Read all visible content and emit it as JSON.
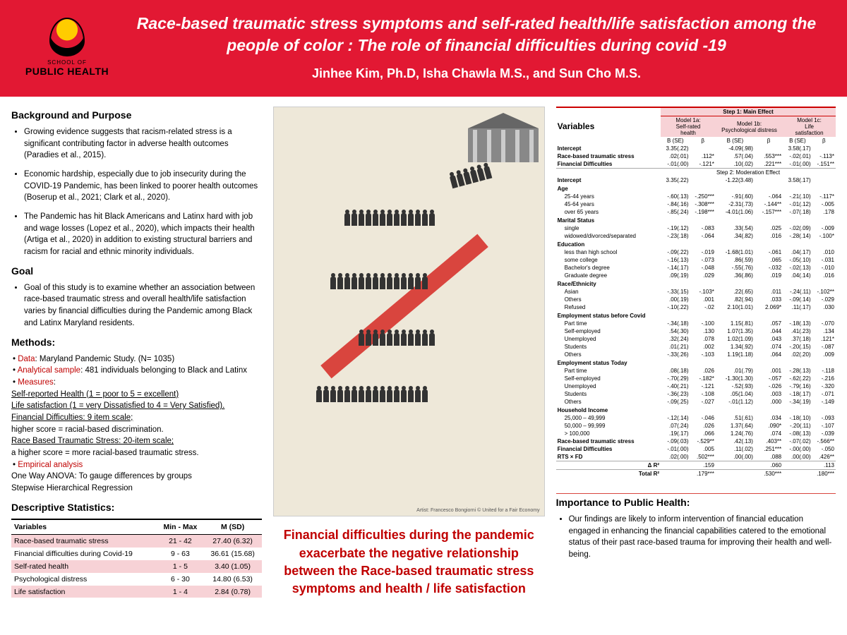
{
  "header": {
    "logo_top": "SCHOOL OF",
    "logo_bottom": "PUBLIC HEALTH",
    "title": "Race-based traumatic stress symptoms and self-rated health/life satisfaction among the people of color : The role of financial difficulties during covid -19",
    "authors": "Jinhee Kim, Ph.D, Isha Chawla M.S., and  Sun Cho M.S."
  },
  "left": {
    "bg_title": "Background and Purpose",
    "bg_items": [
      "Growing evidence suggests that racism-related stress is a significant contributing factor in adverse health outcomes (Paradies et al., 2015).",
      "Economic hardship, especially due to job insecurity during the COVID-19 Pandemic, has been linked to poorer health outcomes (Boserup et al., 2021; Clark et al., 2020).",
      "The Pandemic has hit Black Americans and Latinx hard with job and wage losses (Lopez et al., 2020), which impacts their health (Artiga et al., 2020) in addition to existing structural barriers and racism for racial and ethnic minority individuals."
    ],
    "goal_title": "Goal",
    "goal_item": "Goal of this study is to examine whether an  association between race-based traumatic stress and overall health/life satisfaction varies by financial difficulties during the Pandemic among Black and Latinx Maryland residents.",
    "methods_title": "Methods:",
    "m_data_label": "Data",
    "m_data": ": Maryland Pandemic Study. (N= 1035)",
    "m_sample_label": "Analytical sample",
    "m_sample": ": 481 individuals belonging to  Black and Latinx",
    "m_measures_label": "Measures",
    "m_1": "Self-reported Health (1 = poor to 5 = excellent)",
    "m_2": "Life satisfaction (1 = very Dissatisfied to 4 = Very Satisfied).",
    "m_3": "Financial Difficulties: 9 item scale;",
    "m_3b": "higher score = racial-based discrimination.",
    "m_4": " Race Based Traumatic Stress: 20-item scale;",
    "m_4b": "a higher score = more racial-based traumatic stress.",
    "m_emp_label": "Empirical analysis",
    "m_emp1": "One Way ANOVA: To gauge differences by groups",
    "m_emp2": "Stepwise Hierarchical Regression",
    "desc_title": "Descriptive Statistics:",
    "desc_cols": [
      "Variables",
      "Min - Max",
      "M (SD)"
    ],
    "desc_rows": [
      {
        "shade": true,
        "c": [
          "Race-based traumatic stress",
          "21 - 42",
          "27.40 (6.32)"
        ]
      },
      {
        "shade": false,
        "c": [
          "Financial difficulties during Covid-19",
          "9 - 63",
          "36.61 (15.68)"
        ]
      },
      {
        "shade": true,
        "c": [
          "Self-rated health",
          "1 - 5",
          "3.40 (1.05)"
        ]
      },
      {
        "shade": false,
        "c": [
          "Psychological distress",
          "6 - 30",
          "14.80 (6.53)"
        ]
      },
      {
        "shade": true,
        "c": [
          "Life satisfaction",
          "1 - 4",
          "2.84 (0.78)"
        ]
      }
    ]
  },
  "mid": {
    "credit": "Artist: Francesco Bongiorni © United for a Fair Economy",
    "callout": "Financial difficulties during the pandemic exacerbate the negative relationship between the Race-based traumatic stress symptoms and health / life satisfaction"
  },
  "right": {
    "var_title": "Variables",
    "step1": "Step 1: Main Effect",
    "step2": "Step 2: Moderation Effect",
    "models": [
      "Model 1a:\nSelf-rated\nhealth",
      "Model 1b:\nPsychological distress",
      "Model 1c:\nLife\nsatisfaction"
    ],
    "subcols": [
      "B (SE)",
      "β",
      "B (SE)",
      "β",
      "B (SE)",
      "β"
    ],
    "rows": [
      {
        "g": "",
        "n": "Intercept",
        "v": [
          "3.35(.22)",
          "",
          "-4.09(.98)",
          "",
          "3.58(.17)",
          ""
        ]
      },
      {
        "g": "",
        "n": "Race-based traumatic stress",
        "v": [
          ".02(.01)",
          ".112*",
          ".57(.04)",
          ".553***",
          "-.02(.01)",
          "-.113*"
        ]
      },
      {
        "g": "",
        "n": "Financial Difficulties",
        "v": [
          "-.01(.00)",
          "-.121*",
          ".10(.02)",
          ".221***",
          "-.01(.00)",
          "-.151**"
        ]
      },
      {
        "step2": true,
        "n": "Intercept",
        "v": [
          "3.35(.22)",
          "",
          "-1.22(3.48)",
          "",
          "3.58(.17)",
          ""
        ]
      },
      {
        "g": "Age",
        "n": "",
        "v": [
          "",
          "",
          "",
          "",
          "",
          ""
        ]
      },
      {
        "i": true,
        "n": "25-44 years",
        "v": [
          "-.60(.13)",
          "-.250***",
          "-.91(.60)",
          "-.064",
          "-.21(.10)",
          "-.117*"
        ]
      },
      {
        "i": true,
        "n": "45-64 years",
        "v": [
          "-.84(.16)",
          "-.308***",
          "-2.31(.73)",
          "-.144**",
          "-.01(.12)",
          "-.005"
        ]
      },
      {
        "i": true,
        "n": "over 65 years",
        "v": [
          "-.85(.24)",
          "-.198***",
          "-4.01(1.06)",
          "-.157***",
          "-.07(.18)",
          ".178"
        ]
      },
      {
        "g": "Marital Status",
        "n": "",
        "v": [
          "",
          "",
          "",
          "",
          "",
          ""
        ]
      },
      {
        "i": true,
        "n": "single",
        "v": [
          "-.19(.12)",
          "-.083",
          ".33(.54)",
          ".025",
          "-.02(.09)",
          "-.009"
        ]
      },
      {
        "i": true,
        "n": "widowed/divorced/separated",
        "v": [
          "-.23(.18)",
          "-.064",
          ".34(.82)",
          ".016",
          "-.28(.14)",
          "-.100*"
        ]
      },
      {
        "g": "Education",
        "n": "",
        "v": [
          "",
          "",
          "",
          "",
          "",
          ""
        ]
      },
      {
        "i": true,
        "n": "less than high school",
        "v": [
          "-.09(.22)",
          "-.019",
          "-1.68(1.01)",
          "-.061",
          ".04(.17)",
          ".010"
        ]
      },
      {
        "i": true,
        "n": "some college",
        "v": [
          "-.16(.13)",
          "-.073",
          ".86(.59)",
          ".065",
          "-.05(.10)",
          "-.031"
        ]
      },
      {
        "i": true,
        "n": "Bachelor's degree",
        "v": [
          "-.14(.17)",
          "-.048",
          "-.55(.76)",
          "-.032",
          "-.02(.13)",
          "-.010"
        ]
      },
      {
        "i": true,
        "n": "Graduate degree",
        "v": [
          ".09(.19)",
          ".029",
          ".36(.86)",
          ".019",
          ".04(.14)",
          ".016"
        ]
      },
      {
        "g": "Race/Ethnicity",
        "n": "",
        "v": [
          "",
          "",
          "",
          "",
          "",
          ""
        ]
      },
      {
        "i": true,
        "n": "Asian",
        "v": [
          "-.33(.15)",
          "-.103*",
          ".22(.65)",
          ".011",
          "-.24(.11)",
          "-.102**"
        ]
      },
      {
        "i": true,
        "n": "Others",
        "v": [
          ".00(.19)",
          ".001",
          ".82(.94)",
          ".033",
          "-.09(.14)",
          "-.029"
        ]
      },
      {
        "i": true,
        "n": "Refused",
        "v": [
          "-.10(.22)",
          "-.02",
          "2.10(1.01)",
          "2.069*",
          ".11(.17)",
          ".030"
        ]
      },
      {
        "g": "Employment status before Covid",
        "n": "",
        "v": [
          "",
          "",
          "",
          "",
          "",
          ""
        ]
      },
      {
        "i": true,
        "n": "Part time",
        "v": [
          "-.34(.18)",
          "-.100",
          "1.15(.81)",
          ".057",
          "-.18(.13)",
          "-.070"
        ]
      },
      {
        "i": true,
        "n": "Self-employed",
        "v": [
          ".54(.30)",
          ".130",
          "1.07(1.35)",
          ".044",
          ".41(.23)",
          ".134"
        ]
      },
      {
        "i": true,
        "n": "Unemployed",
        "v": [
          ".32(.24)",
          ".078",
          "1.02(1.09)",
          ".043",
          ".37(.18)",
          ".121*"
        ]
      },
      {
        "i": true,
        "n": "Students",
        "v": [
          ".01(.21)",
          ".002",
          "1.34(.92)",
          ".074",
          "-.20(.15)",
          "-.087"
        ]
      },
      {
        "i": true,
        "n": "Others",
        "v": [
          "-.33(.26)",
          "-.103",
          "1.19(1.18)",
          ".064",
          ".02(.20)",
          ".009"
        ]
      },
      {
        "g": "Employment status Today",
        "n": "",
        "v": [
          "",
          "",
          "",
          "",
          "",
          ""
        ]
      },
      {
        "i": true,
        "n": "Part time",
        "v": [
          ".08(.18)",
          ".026",
          ".01(.79)",
          ".001",
          "-.28(.13)",
          "-.118"
        ]
      },
      {
        "i": true,
        "n": "Self-employed",
        "v": [
          "-.70(.29)",
          "-.182*",
          "-1.30(1.30)",
          "-.057",
          "-.62(.22)",
          "-.216"
        ]
      },
      {
        "i": true,
        "n": "Unemployed",
        "v": [
          "-.40(.21)",
          "-.121",
          "-.52(.93)",
          "-.026",
          "-.79(.16)",
          "-.320"
        ]
      },
      {
        "i": true,
        "n": "Students",
        "v": [
          "-.36(.23)",
          "-.108",
          ".05(1.04)",
          ".003",
          "-.18(.17)",
          "-.071"
        ]
      },
      {
        "i": true,
        "n": "Others",
        "v": [
          "-.09(.25)",
          "-.027",
          "-.01(1.12)",
          ".000",
          "-.34(.19)",
          "-.149"
        ]
      },
      {
        "g": "Household Income",
        "n": "",
        "v": [
          "",
          "",
          "",
          "",
          "",
          ""
        ]
      },
      {
        "i": true,
        "n": "25,000 – 49,999",
        "v": [
          "-.12(.14)",
          "-.046",
          ".51(.61)",
          ".034",
          "-.18(.10)",
          "-.093"
        ]
      },
      {
        "i": true,
        "n": "50,000 – 99,999",
        "v": [
          ".07(.24)",
          ".026",
          "1.37(.64)",
          ".090*",
          "-.20(.11)",
          "-.107"
        ]
      },
      {
        "i": true,
        "n": "> 100,000",
        "v": [
          ".19(.17)",
          ".066",
          "1.24(.76)",
          ".074",
          "-.08(.13)",
          "-.039"
        ]
      },
      {
        "g": "",
        "n": "Race-based traumatic stress",
        "v": [
          "-.09(.03)",
          "-.529**",
          ".42(.13)",
          ".403**",
          "-.07(.02)",
          "-.566**"
        ]
      },
      {
        "g": "",
        "n": "Financial Difficulties",
        "v": [
          "-.01(.00)",
          ".005",
          ".11(.02)",
          ".251***",
          "-.00(.00)",
          "-.050"
        ]
      },
      {
        "g": "",
        "n": "RTS × FD",
        "v": [
          ".02(.00)",
          ".502***",
          ".00(.00)",
          ".088",
          ".00(.00)",
          ".426**"
        ]
      },
      {
        "dr2": true,
        "n": "Δ R²",
        "v": [
          "",
          ".159",
          "",
          ".060",
          "",
          ".113"
        ]
      },
      {
        "tot": true,
        "n": "Total R²",
        "v": [
          "",
          ".179***",
          "",
          ".530***",
          "",
          ".180***"
        ]
      }
    ],
    "imp_title": "Importance to Public Health:",
    "imp_text": "Our findings are likely to inform intervention of financial education engaged in enhancing the financial capabilities catered to the emotional status of their past race-based trauma for improving their health and well-being."
  }
}
